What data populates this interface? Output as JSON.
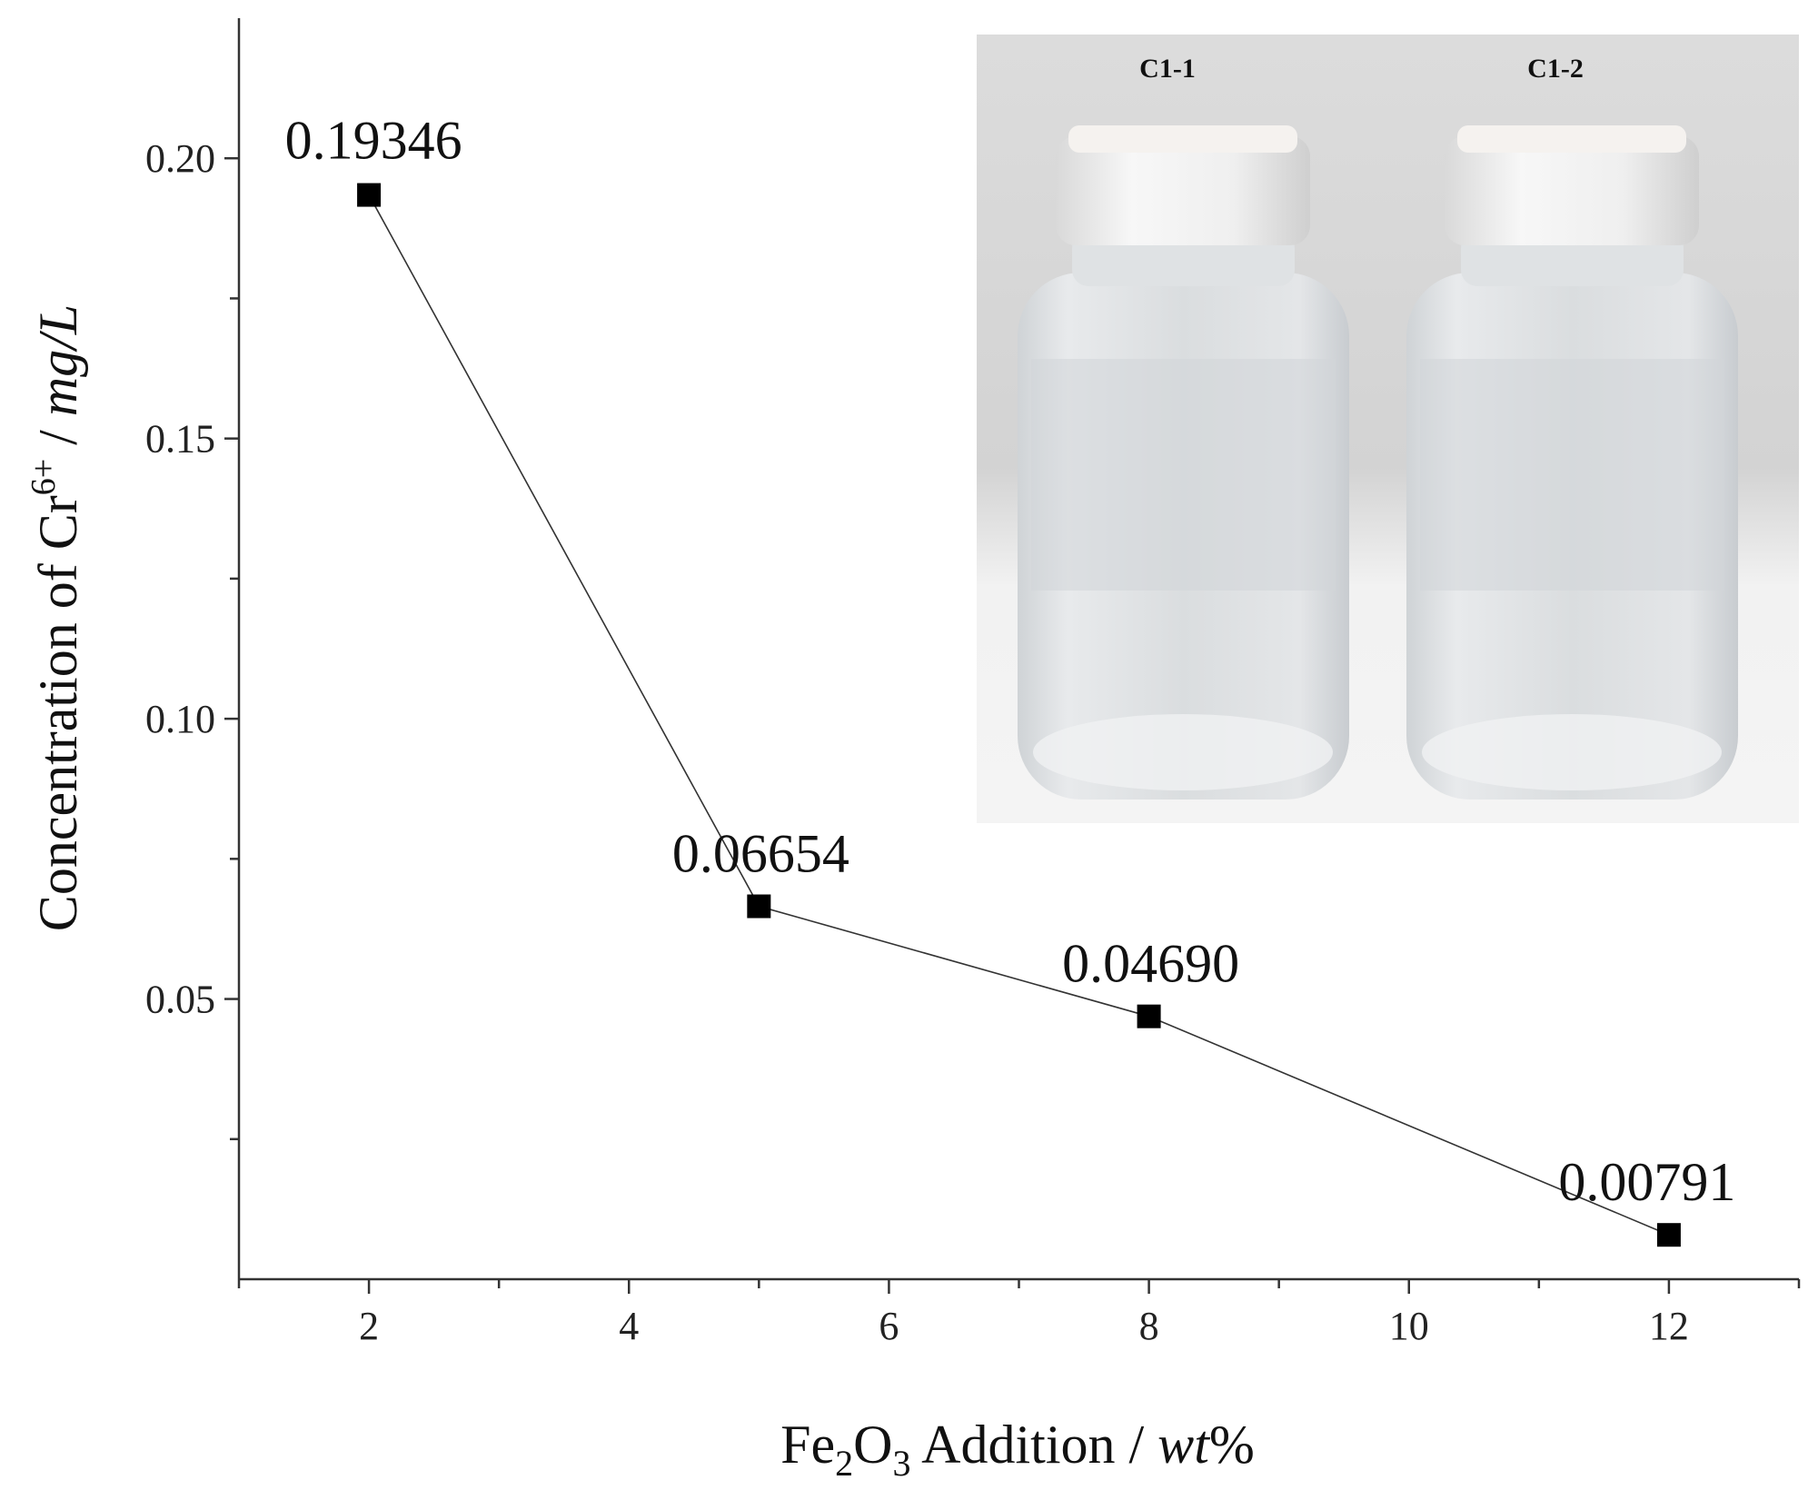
{
  "chart_data": {
    "type": "line",
    "x": [
      2,
      5,
      8,
      12
    ],
    "series": [
      {
        "values": [
          0.19346,
          0.06654,
          0.0469,
          0.00791
        ],
        "labels": [
          "0.19346",
          "0.06654",
          "0.04690",
          "0.00791"
        ],
        "marker": "square",
        "color": "#000000"
      }
    ],
    "xlabel": {
      "main": "Fe",
      "sub1": "2",
      "mid": "O",
      "sub2": "3",
      "rest": " Addition / ",
      "unit": "wt",
      "pct": "%"
    },
    "ylabel": {
      "main": "Concentration of Cr",
      "sup": "6+",
      "sep": " / ",
      "unit": "mg/L"
    },
    "xticks": [
      "2",
      "4",
      "6",
      "8",
      "10",
      "12"
    ],
    "yticks": [
      "0.05",
      "0.10",
      "0.15",
      "0.20"
    ],
    "xlim": [
      1,
      13
    ],
    "ylim": [
      0.0,
      0.225
    ],
    "grid": false,
    "inset_photo": {
      "labels": [
        "C1-1",
        "C1-2"
      ],
      "content": "two clear sample bottles with white caps"
    }
  }
}
